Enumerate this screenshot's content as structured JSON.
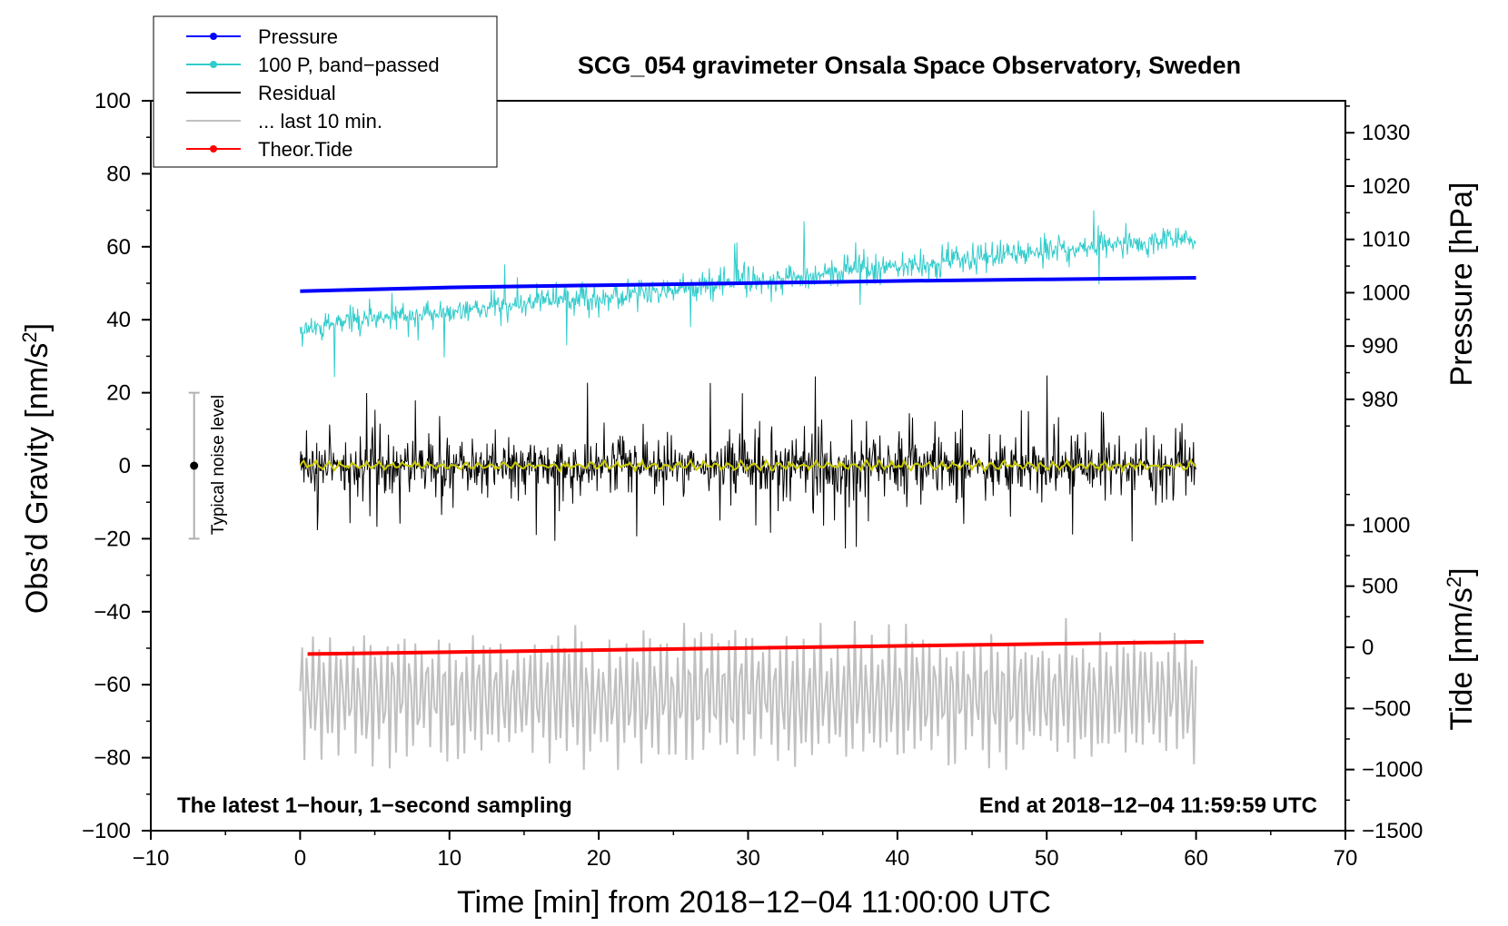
{
  "chart_data": {
    "type": "line",
    "title": "SCG_054 gravimeter Onsala Space Observatory, Sweden",
    "xlabel": "Time [min] from 2018−12−04 11:00:00 UTC",
    "ylabel_left": "Obs’d Gravity [nm/s",
    "ylabel_left_sup": "2",
    "ylabel_left_close": "]",
    "ylabel_right_pressure": "Pressure [hPa]",
    "ylabel_right_tide": "Tide [nm/s",
    "ylabel_right_tide_sup": "2",
    "ylabel_right_tide_close": "]",
    "xlim": [
      -10,
      70
    ],
    "ylim": [
      -100,
      100
    ],
    "pressure_lim": [
      973,
      1036
    ],
    "tide_lim": [
      -1500,
      1500
    ],
    "x_ticks": [
      {
        "value": -10,
        "label": "−10"
      },
      {
        "value": 0,
        "label": "0"
      },
      {
        "value": 10,
        "label": "10"
      },
      {
        "value": 20,
        "label": "20"
      },
      {
        "value": 30,
        "label": "30"
      },
      {
        "value": 40,
        "label": "40"
      },
      {
        "value": 50,
        "label": "50"
      },
      {
        "value": 60,
        "label": "60"
      },
      {
        "value": 70,
        "label": "70"
      }
    ],
    "y_ticks": [
      {
        "value": 100,
        "label": "100"
      },
      {
        "value": 80,
        "label": "80"
      },
      {
        "value": 60,
        "label": "60"
      },
      {
        "value": 40,
        "label": "40"
      },
      {
        "value": 20,
        "label": "20"
      },
      {
        "value": 0,
        "label": "0"
      },
      {
        "value": -20,
        "label": "−20"
      },
      {
        "value": -40,
        "label": "−40"
      },
      {
        "value": -60,
        "label": "−60"
      },
      {
        "value": -80,
        "label": "−80"
      },
      {
        "value": -100,
        "label": "−100"
      }
    ],
    "pressure_ticks": [
      {
        "value": 1030,
        "label": "1030"
      },
      {
        "value": 1020,
        "label": "1020"
      },
      {
        "value": 1010,
        "label": "1010"
      },
      {
        "value": 1000,
        "label": "1000"
      },
      {
        "value": 990,
        "label": "990"
      },
      {
        "value": 980,
        "label": "980"
      }
    ],
    "tide_ticks": [
      {
        "value": 1000,
        "label": "1000"
      },
      {
        "value": 500,
        "label": "500"
      },
      {
        "value": 0,
        "label": "0"
      },
      {
        "value": -500,
        "label": "−500"
      },
      {
        "value": -1000,
        "label": "−1000"
      },
      {
        "value": -1500,
        "label": "−1500"
      }
    ],
    "series": [
      {
        "name": "Pressure",
        "color": "#0000ff",
        "axis": "pressure",
        "description_x": [
          0,
          60
        ],
        "values": [
          1000.3,
          1001.0,
          1001.4,
          1001.8,
          1002.2,
          1002.5,
          1002.8
        ]
      },
      {
        "name": "100 P, band−passed",
        "color": "#33cccc",
        "axis": "gravity",
        "x_range": [
          0,
          60
        ],
        "trend": [
          38,
          63
        ],
        "amplitude": 6
      },
      {
        "name": "Residual",
        "color": "#000000",
        "axis": "gravity",
        "x_range": [
          0,
          60
        ],
        "center": 0,
        "amplitude": 20
      },
      {
        "name": "Residual smoothed",
        "color": "#cccc00",
        "axis": "gravity",
        "x_range": [
          0,
          60
        ],
        "center": 0,
        "amplitude": 1.5
      },
      {
        "name": "... last 10 min.",
        "color": "#c0c0c0",
        "axis": "gravity",
        "x_range": [
          0,
          60
        ],
        "center": -63,
        "amplitude": 18
      },
      {
        "name": "Theor.Tide",
        "color": "#ff0000",
        "axis": "tide",
        "x": [
          0,
          60
        ],
        "values": [
          -55,
          45
        ]
      }
    ],
    "legend": [
      {
        "label": "Pressure",
        "color": "#0000ff",
        "marker": true
      },
      {
        "label": "100 P, band−passed",
        "color": "#33cccc",
        "marker": true
      },
      {
        "label": "Residual",
        "color": "#000000",
        "marker": false
      },
      {
        "label": "... last 10 min.",
        "color": "#c0c0c0",
        "marker": false
      },
      {
        "label": "Theor.Tide",
        "color": "#ff0000",
        "marker": true
      }
    ],
    "legend_position": "top-left",
    "noise_label": "Typical noise level",
    "noise_range": [
      -20,
      20
    ],
    "annotation_left": "The latest 1−hour, 1−second sampling",
    "annotation_right": "End at 2018−12−04 11:59:59 UTC"
  }
}
